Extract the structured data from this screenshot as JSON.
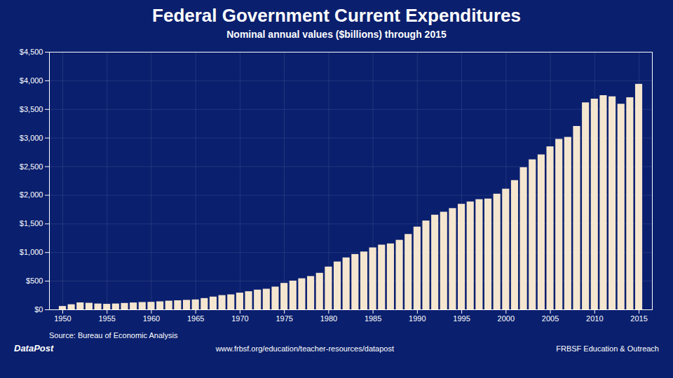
{
  "chart_data": {
    "type": "bar",
    "title": "Federal Government Current Expenditures",
    "subtitle": "Nominal annual values ($billions) through 2015",
    "annotations": [
      "Source: Bureau of Economic Analysis",
      "DataPost",
      "www.frbsf.org/education/teacher-resources/datapost",
      "FRBSF Education & Outreach"
    ],
    "x": [
      1950,
      1951,
      1952,
      1953,
      1954,
      1955,
      1956,
      1957,
      1958,
      1959,
      1960,
      1961,
      1962,
      1963,
      1964,
      1965,
      1966,
      1967,
      1968,
      1969,
      1970,
      1971,
      1972,
      1973,
      1974,
      1975,
      1976,
      1977,
      1978,
      1979,
      1980,
      1981,
      1982,
      1983,
      1984,
      1985,
      1986,
      1987,
      1988,
      1989,
      1990,
      1991,
      1992,
      1993,
      1994,
      1995,
      1996,
      1997,
      1998,
      1999,
      2000,
      2001,
      2002,
      2003,
      2004,
      2005,
      2006,
      2007,
      2008,
      2009,
      2010,
      2011,
      2012,
      2013,
      2014,
      2015
    ],
    "values": [
      59.3,
      89.7,
      122.0,
      115.3,
      102.6,
      97.0,
      102.7,
      112.5,
      120.5,
      128.3,
      131.8,
      140.4,
      152.0,
      158.9,
      166.4,
      173.6,
      197.4,
      223.4,
      249.3,
      262.2,
      292.5,
      316.8,
      345.0,
      360.7,
      398.0,
      462.2,
      502.5,
      543.3,
      582.2,
      638.5,
      748.0,
      836.5,
      907.4,
      966.9,
      1011.0,
      1082.5,
      1131.0,
      1152.0,
      1215.0,
      1317.0,
      1446.0,
      1552.0,
      1654.0,
      1706.0,
      1769.0,
      1844.0,
      1885.0,
      1925.0,
      1936.0,
      2021.0,
      2108.0,
      2258.0,
      2484.0,
      2621.0,
      2707.0,
      2848.0,
      2978.0,
      3013.0,
      3204.0,
      3616.0,
      3681.0,
      3742.0,
      3722.0,
      3592.0,
      3706.0,
      3940.0
    ],
    "color": "#f5e6d0",
    "xlim": [
      1948.5,
      2016.5
    ],
    "xticks": [
      1950,
      1955,
      1960,
      1965,
      1970,
      1975,
      1980,
      1985,
      1990,
      1995,
      2000,
      2005,
      2010,
      2015
    ],
    "ylim": [
      0,
      4500
    ],
    "yticks": [
      {
        "value": 0,
        "label": "$0"
      },
      {
        "value": 500,
        "label": "$500"
      },
      {
        "value": 1000,
        "label": "$1,000"
      },
      {
        "value": 1500,
        "label": "$1,500"
      },
      {
        "value": 2000,
        "label": "$2,000"
      },
      {
        "value": 2500,
        "label": "$2,500"
      },
      {
        "value": 3000,
        "label": "$3,000"
      },
      {
        "value": 3500,
        "label": "$3,500"
      },
      {
        "value": 4000,
        "label": "$4,000"
      },
      {
        "value": 4500,
        "label": "$4,500"
      }
    ],
    "grid": true
  }
}
